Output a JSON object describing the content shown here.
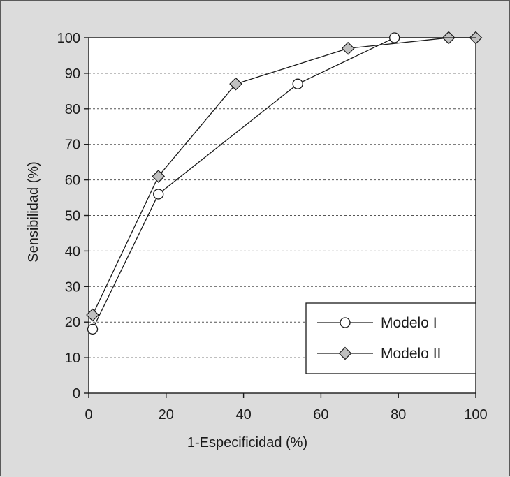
{
  "chart_data": {
    "type": "line",
    "title": "",
    "xlabel": "1-Especificidad (%)",
    "ylabel": "Sensibilidad  (%)",
    "xlim": [
      0,
      100
    ],
    "ylim": [
      0,
      100
    ],
    "x_ticks": [
      "0",
      "20",
      "40",
      "60",
      "80",
      "100"
    ],
    "y_ticks": [
      "0",
      "10",
      "20",
      "30",
      "40",
      "50",
      "60",
      "70",
      "80",
      "90",
      "100"
    ],
    "grid": "horizontal-dashed",
    "legend_position": "bottom-right",
    "colors": {
      "background": "#dcdcdc",
      "plot_area": "#ffffff",
      "line": "#1a1a1a",
      "circle_fill": "#ffffff",
      "diamond_fill": "#c0c0c0"
    },
    "series": [
      {
        "name": "Modelo I",
        "marker": "circle",
        "points": [
          [
            1,
            18
          ],
          [
            18,
            56
          ],
          [
            54,
            87
          ],
          [
            79,
            100
          ],
          [
            93,
            100
          ],
          [
            100,
            100
          ]
        ],
        "marked": [
          true,
          true,
          true,
          true,
          false,
          false
        ]
      },
      {
        "name": "Modelo II",
        "marker": "diamond",
        "points": [
          [
            1,
            22
          ],
          [
            18,
            61
          ],
          [
            38,
            87
          ],
          [
            67,
            97
          ],
          [
            93,
            100
          ],
          [
            100,
            100
          ]
        ],
        "marked": [
          true,
          true,
          true,
          true,
          true,
          true
        ]
      }
    ]
  }
}
